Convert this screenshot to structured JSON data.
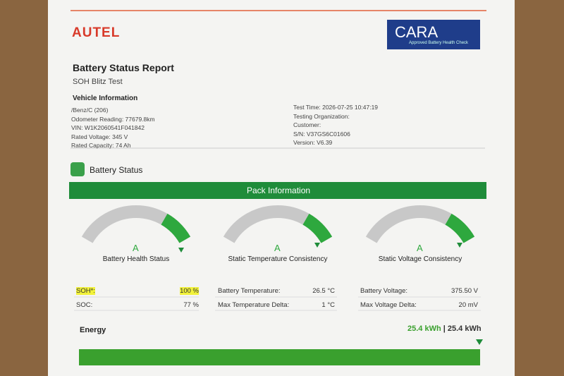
{
  "header": {
    "brand": "AUTEL",
    "badge_title": "CARA",
    "badge_subtitle": "Approved Battery Health Check",
    "title": "Battery Status Report",
    "subtitle": "SOH Blitz Test"
  },
  "vehicle": {
    "heading": "Vehicle Information",
    "left": [
      "/Benz/C (206)",
      "Odometer Reading: 77679.8km",
      "VIN: W1K2060541F041842",
      "Rated Voltage: 345 V",
      "Rated Capacity: 74 Ah"
    ],
    "right": [
      "Test Time: 2026-07-25 10:47:19",
      "Testing Organization:",
      "Customer:",
      "S/N: V37GS6C01606",
      "Version: V6.39"
    ]
  },
  "battery_status": {
    "heading": "Battery Status",
    "banner": "Pack Information",
    "gauges": [
      {
        "grade": "A",
        "label": "Battery Health Status",
        "rows": [
          [
            "SOH*:",
            "100 %"
          ],
          [
            "SOC:",
            "77 %"
          ]
        ]
      },
      {
        "grade": "A",
        "label": "Static Temperature Consistency",
        "rows": [
          [
            "Battery Temperature:",
            "26.5 °C"
          ],
          [
            "Max Temperature Delta:",
            "1 °C"
          ]
        ]
      },
      {
        "grade": "A",
        "label": "Static Voltage Consistency",
        "rows": [
          [
            "Battery Voltage:",
            "375.50 V"
          ],
          [
            "Max Voltage Delta:",
            "20 mV"
          ]
        ]
      }
    ]
  },
  "energy": {
    "label": "Energy",
    "current": "25.4 kWh",
    "separator": "|",
    "total": "25.4 kWh"
  }
}
